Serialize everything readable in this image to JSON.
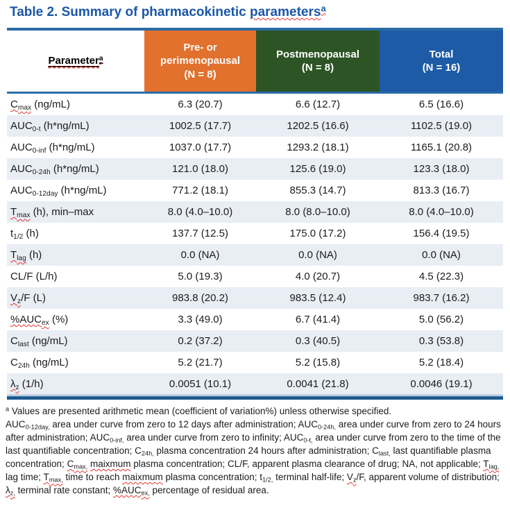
{
  "colors": {
    "title_blue": "#1A57A8",
    "header_orange": "#E1712D",
    "header_green": "#2D5424",
    "header_blue": "#1E5BA7",
    "table_rule_blue": "#2A6CA5",
    "table_rule_dark_blue": "#1E5A8E",
    "row_stripe": "#E9EDF4",
    "spellcheck_red": "#E3342F"
  },
  "title": {
    "plain_text": "Table 2. Summary of pharmacokinetic parametersa",
    "segments": [
      {
        "t": "Table 2. Summary of pharmacokinetic "
      },
      {
        "t": "parameters",
        "u": "wavy"
      },
      {
        "t": "a",
        "st": "sup",
        "u": "wavy"
      }
    ]
  },
  "table": {
    "param_header": {
      "plain_text": "Parametera",
      "segments": [
        {
          "t": "Parameter",
          "u": "both"
        },
        {
          "t": "a",
          "st": "sup",
          "u": "both"
        }
      ]
    },
    "columns": [
      {
        "label": "Pre- or\nperimenopausal\n(N = 8)",
        "bg": "#E1712D"
      },
      {
        "label": "Postmenopausal\n(N = 8)",
        "bg": "#2D5424"
      },
      {
        "label": "Total\n(N = 16)",
        "bg": "#1E5BA7"
      }
    ],
    "rows": [
      {
        "param": [
          {
            "t": "C",
            "u": "wavy"
          },
          {
            "t": "max",
            "st": "sub",
            "u": "wavy"
          },
          {
            "t": " (ng/mL)"
          }
        ],
        "values": [
          "6.3 (20.7)",
          "6.6 (12.7)",
          "6.5 (16.6)"
        ]
      },
      {
        "param": [
          {
            "t": "AUC"
          },
          {
            "t": "0-t",
            "st": "sub"
          },
          {
            "t": " (h*ng/mL)"
          }
        ],
        "values": [
          "1002.5 (17.7)",
          "1202.5 (16.6)",
          "1102.5 (19.0)"
        ]
      },
      {
        "param": [
          {
            "t": "AUC"
          },
          {
            "t": "0-inf",
            "st": "sub"
          },
          {
            "t": " (h*ng/mL)"
          }
        ],
        "values": [
          "1037.0 (17.7)",
          "1293.2 (18.1)",
          "1165.1 (20.8)"
        ]
      },
      {
        "param": [
          {
            "t": "AUC"
          },
          {
            "t": "0-24h",
            "st": "sub"
          },
          {
            "t": " (h*ng/mL)"
          }
        ],
        "values": [
          "121.0 (18.0)",
          "125.6 (19.0)",
          "123.3 (18.0)"
        ]
      },
      {
        "param": [
          {
            "t": "AUC"
          },
          {
            "t": "0-12day",
            "st": "sub"
          },
          {
            "t": " (h*ng/mL)"
          }
        ],
        "values": [
          "771.2 (18.1)",
          "855.3 (14.7)",
          "813.3 (16.7)"
        ]
      },
      {
        "param": [
          {
            "t": "T",
            "u": "wavy"
          },
          {
            "t": "max",
            "st": "sub",
            "u": "wavy"
          },
          {
            "t": " (h), min–max"
          }
        ],
        "values": [
          "8.0 (4.0–10.0)",
          "8.0 (8.0–10.0)",
          "8.0 (4.0–10.0)"
        ]
      },
      {
        "param": [
          {
            "t": "t"
          },
          {
            "t": "1/2",
            "st": "sub"
          },
          {
            "t": " (h)"
          }
        ],
        "values": [
          "137.7 (12.5)",
          "175.0 (17.2)",
          "156.4 (19.5)"
        ]
      },
      {
        "param": [
          {
            "t": "T",
            "u": "wavy"
          },
          {
            "t": "lag",
            "st": "sub",
            "u": "wavy"
          },
          {
            "t": " (h)"
          }
        ],
        "values": [
          "0.0 (NA)",
          "0.0 (NA)",
          "0.0 (NA)"
        ]
      },
      {
        "param": [
          {
            "t": "CL/F (L/h)"
          }
        ],
        "values": [
          "5.0 (19.3)",
          "4.0 (20.7)",
          "4.5 (22.3)"
        ]
      },
      {
        "param": [
          {
            "t": "V",
            "u": "wavy"
          },
          {
            "t": "z",
            "st": "sub",
            "u": "wavy"
          },
          {
            "t": "/F (L)"
          }
        ],
        "values": [
          "983.8 (20.2)",
          "983.5 (12.4)",
          "983.7 (16.2)"
        ]
      },
      {
        "param": [
          {
            "t": "%AUC",
            "u": "wavy"
          },
          {
            "t": "ex",
            "st": "sub",
            "u": "wavy"
          },
          {
            "t": " (%)"
          }
        ],
        "values": [
          "3.3 (49.0)",
          "6.7 (41.4)",
          "5.0 (56.2)"
        ]
      },
      {
        "param": [
          {
            "t": "C"
          },
          {
            "t": "last",
            "st": "sub"
          },
          {
            "t": " (ng/mL)"
          }
        ],
        "values": [
          "0.2 (37.2)",
          "0.3 (40.5)",
          "0.3 (53.8)"
        ]
      },
      {
        "param": [
          {
            "t": "C"
          },
          {
            "t": "24h",
            "st": "sub"
          },
          {
            "t": " (ng/mL)"
          }
        ],
        "values": [
          "5.2 (21.7)",
          "5.2 (15.8)",
          "5.2 (18.4)"
        ]
      },
      {
        "param": [
          {
            "t": "λ",
            "u": "wavy"
          },
          {
            "t": "z",
            "st": "sub",
            "u": "wavy"
          },
          {
            "t": " (1/h)"
          }
        ],
        "values": [
          "0.0051 (10.1)",
          "0.0041 (21.8)",
          "0.0046 (19.1)"
        ]
      }
    ]
  },
  "footnote": {
    "segments": [
      {
        "t": "a",
        "st": "sup"
      },
      {
        "t": " Values are presented arithmetic mean (coefficient of variation%) unless otherwise specified."
      },
      {
        "br": true
      },
      {
        "t": "AUC"
      },
      {
        "t": "0-12day,",
        "st": "sub"
      },
      {
        "t": " area under curve from zero to 12 days after administration; "
      },
      {
        "t": "AUC"
      },
      {
        "t": "0-24h,",
        "st": "sub"
      },
      {
        "t": " area under curve from zero to 24 hours after administration; "
      },
      {
        "t": "AUC"
      },
      {
        "t": "0-inf,",
        "st": "sub"
      },
      {
        "t": " area under curve from zero to infinity; "
      },
      {
        "t": "AUC"
      },
      {
        "t": "0-t,",
        "st": "sub"
      },
      {
        "t": " area under curve from zero to the time of the last quantifiable concentration; "
      },
      {
        "t": "C"
      },
      {
        "t": "24h,",
        "st": "sub"
      },
      {
        "t": " plasma concentration 24 hours after administration; "
      },
      {
        "t": "C"
      },
      {
        "t": "last,",
        "st": "sub"
      },
      {
        "t": " last quantifiable plasma concentration; "
      },
      {
        "t": "C",
        "u": "wavy"
      },
      {
        "t": "max,",
        "st": "sub",
        "u": "wavy"
      },
      {
        "t": " "
      },
      {
        "t": "maixmum",
        "u": "wavy"
      },
      {
        "t": " plasma concentration; CL/F, apparent plasma clearance of drug; NA, not applicable; "
      },
      {
        "t": "T",
        "u": "wavy"
      },
      {
        "t": "lag,",
        "st": "sub",
        "u": "wavy"
      },
      {
        "t": " lag time; "
      },
      {
        "t": "T",
        "u": "wavy"
      },
      {
        "t": "max,",
        "st": "sub",
        "u": "wavy"
      },
      {
        "t": " time to reach "
      },
      {
        "t": "maixmum",
        "u": "wavy"
      },
      {
        "t": " plasma concentration; t"
      },
      {
        "t": "1/2,",
        "st": "sub"
      },
      {
        "t": " terminal half-life; "
      },
      {
        "t": "V",
        "u": "wavy"
      },
      {
        "t": "z",
        "st": "sub",
        "u": "wavy"
      },
      {
        "t": "/F, apparent volume of distribution; "
      },
      {
        "t": "λ",
        "u": "wavy"
      },
      {
        "t": "z,",
        "st": "sub",
        "u": "wavy"
      },
      {
        "t": " terminal rate constant; "
      },
      {
        "t": "%AUC",
        "u": "wavy"
      },
      {
        "t": "ex,",
        "st": "sub",
        "u": "wavy"
      },
      {
        "t": " percentage of residual area."
      }
    ]
  }
}
